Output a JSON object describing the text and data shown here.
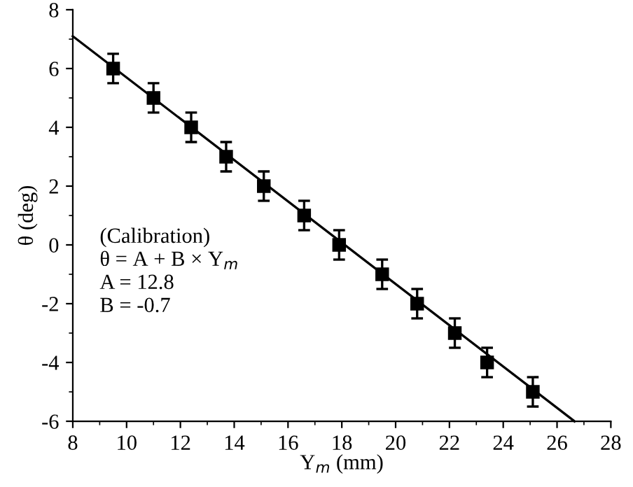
{
  "chart_data": {
    "type": "scatter",
    "xlabel": "Y$_{m}$ (mm)",
    "ylabel": "θ (deg)",
    "x": [
      9.5,
      11.0,
      12.4,
      13.7,
      15.1,
      16.6,
      17.9,
      19.5,
      20.8,
      22.2,
      23.4,
      25.1
    ],
    "series": [
      {
        "color": "#000000",
        "marker": "square",
        "values": [
          6,
          5,
          4,
          3,
          2,
          1,
          0,
          -1,
          -2,
          -3,
          -4,
          -5
        ],
        "errors": [
          0.5,
          0.5,
          0.5,
          0.5,
          0.5,
          0.5,
          0.5,
          0.5,
          0.5,
          0.5,
          0.5,
          0.5
        ]
      },
      {
        "type": "line",
        "color": "#000000",
        "line_style": "solid",
        "x": [
          8,
          26.65
        ],
        "values": [
          7.1,
          -6
        ]
      }
    ],
    "annotations": [
      "(Calibration)\nθ = A + B × Y$_{m}$\nA = 12.8\nB = -0.7"
    ],
    "xlim": [
      8,
      28
    ],
    "ylim": [
      -6,
      8
    ],
    "xticks": [
      8,
      10,
      12,
      14,
      16,
      18,
      20,
      22,
      24,
      26,
      28
    ],
    "yticks": [
      -6,
      -4,
      -2,
      0,
      2,
      4,
      6,
      8
    ],
    "grid": false,
    "legend": false
  }
}
